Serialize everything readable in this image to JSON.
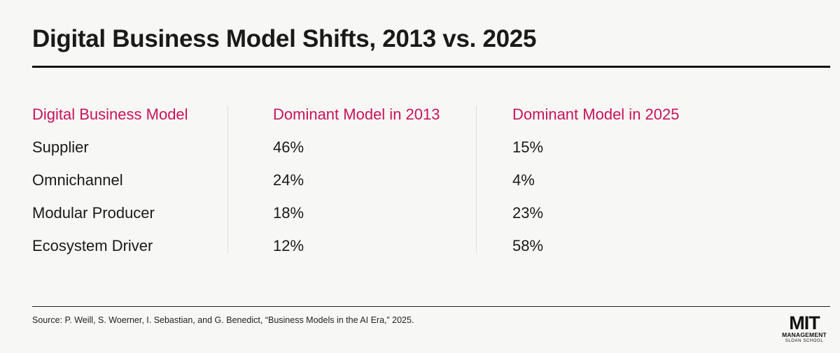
{
  "title": "Digital Business Model Shifts, 2013 vs. 2025",
  "chart_data": {
    "type": "table",
    "columns": [
      "Digital Business Model",
      "Dominant Model in 2013",
      "Dominant Model in 2025"
    ],
    "rows": [
      {
        "model": "Supplier",
        "y2013": "46%",
        "y2025": "15%"
      },
      {
        "model": "Omnichannel",
        "y2013": "24%",
        "y2025": "4%"
      },
      {
        "model": "Modular Producer",
        "y2013": "18%",
        "y2025": "23%"
      },
      {
        "model": "Ecosystem Driver",
        "y2013": "12%",
        "y2025": "58%"
      }
    ]
  },
  "source": "Source: P. Weill, S. Woerner, I. Sebastian, and G. Benedict, “Business Models in the AI Era,” 2025.",
  "logo": {
    "main": "MIT",
    "line1": "MANAGEMENT",
    "line2": "SLOAN SCHOOL"
  },
  "colors": {
    "accent": "#c8145a",
    "text": "#1a1a1a",
    "background": "#f7f7f5"
  }
}
